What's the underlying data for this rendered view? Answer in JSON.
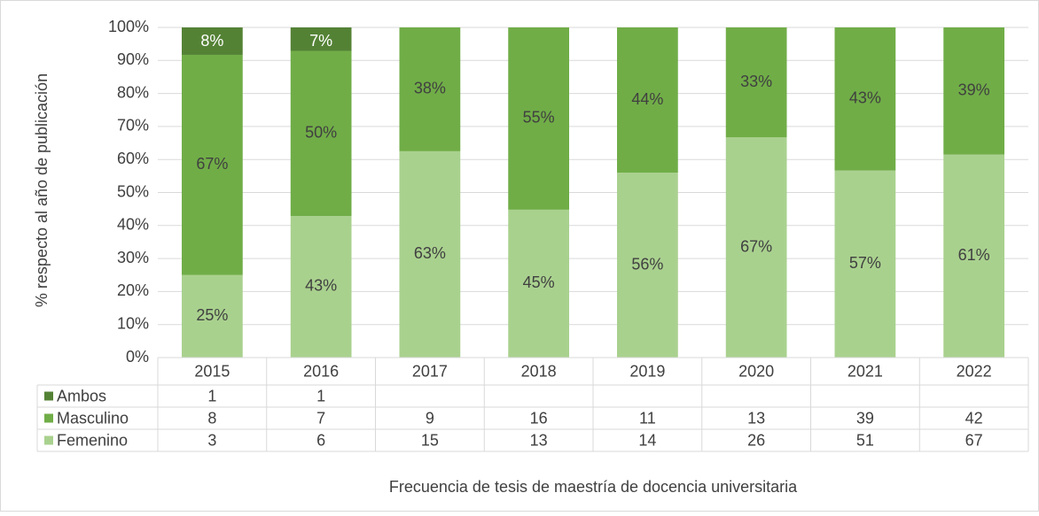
{
  "chart_data": {
    "type": "bar",
    "stacked": true,
    "ylabel": "% respecto al año de publicación",
    "xlabel": "Frecuencia de tesis de maestría de docencia universitaria",
    "categories": [
      "2015",
      "2016",
      "2017",
      "2018",
      "2019",
      "2020",
      "2021",
      "2022"
    ],
    "ylim": [
      0,
      100
    ],
    "yticks": [
      {
        "value": 0,
        "label": "0%"
      },
      {
        "value": 10,
        "label": "10%"
      },
      {
        "value": 20,
        "label": "20%"
      },
      {
        "value": 30,
        "label": "30%"
      },
      {
        "value": 40,
        "label": "40%"
      },
      {
        "value": 50,
        "label": "50%"
      },
      {
        "value": 60,
        "label": "60%"
      },
      {
        "value": 70,
        "label": "70%"
      },
      {
        "value": 80,
        "label": "80%"
      },
      {
        "value": 90,
        "label": "90%"
      },
      {
        "value": 100,
        "label": "100%"
      }
    ],
    "grid": true,
    "series": [
      {
        "name": "Femenino",
        "color": "#a9d18e",
        "label_color": "#404040",
        "values": [
          25,
          42.9,
          62.5,
          44.8,
          56,
          66.7,
          56.7,
          61.5
        ],
        "value_labels": [
          "25%",
          "43%",
          "63%",
          "45%",
          "56%",
          "67%",
          "57%",
          "61%"
        ],
        "counts": [
          3,
          6,
          15,
          13,
          14,
          26,
          51,
          67
        ]
      },
      {
        "name": "Masculino",
        "color": "#70ad47",
        "label_color": "#404040",
        "values": [
          66.7,
          50,
          37.5,
          55.2,
          44,
          33.3,
          43.3,
          38.5
        ],
        "value_labels": [
          "67%",
          "50%",
          "38%",
          "55%",
          "44%",
          "33%",
          "43%",
          "39%"
        ],
        "counts": [
          8,
          7,
          9,
          16,
          11,
          13,
          39,
          42
        ]
      },
      {
        "name": "Ambos",
        "color": "#548235",
        "label_color": "#ffffff",
        "values": [
          8.3,
          7.1,
          null,
          null,
          null,
          null,
          null,
          null
        ],
        "value_labels": [
          "8%",
          "7%",
          null,
          null,
          null,
          null,
          null,
          null
        ],
        "counts": [
          1,
          1,
          null,
          null,
          null,
          null,
          null,
          null
        ]
      }
    ]
  }
}
